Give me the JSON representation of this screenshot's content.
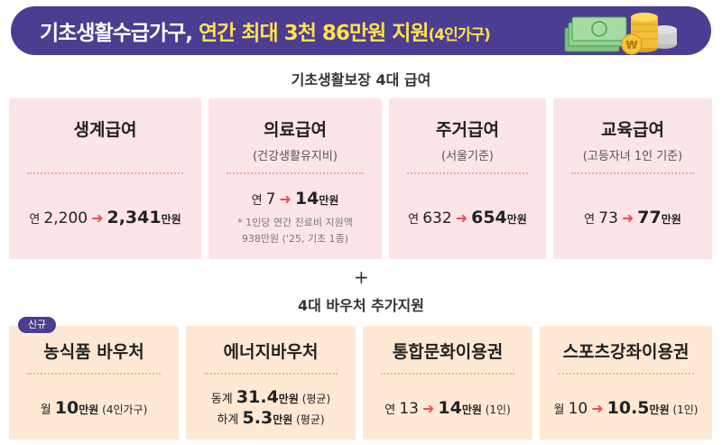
{
  "banner": {
    "title_part1": "기초생활수급가구, ",
    "title_part2": "연간 최대 3천 86만원 지원",
    "title_part3": "(4인가구)"
  },
  "section1": {
    "title": "기초생활보장 4대 급여",
    "cards": [
      {
        "title": "생계급여",
        "prefix": "연 ",
        "from": "2,200",
        "to": "2,341",
        "unit": "만원"
      },
      {
        "title": "의료급여",
        "subtitle": "(건강생활유지비)",
        "prefix": "연 ",
        "from": "7",
        "to": "14",
        "unit": "만원",
        "note1": "* 1인당 연간 진료비 지원액",
        "note2": "938만원 ('25, 기초 1종)"
      },
      {
        "title": "주거급여",
        "subtitle": "(서울기준)",
        "prefix": "연 ",
        "from": "632",
        "to": "654",
        "unit": "만원"
      },
      {
        "title": "교육급여",
        "subtitle": "(고등자녀 1인 기준)",
        "prefix": "연 ",
        "from": "73",
        "to": "77",
        "unit": "만원"
      }
    ]
  },
  "plus": "+",
  "section2": {
    "title": "4대 바우처 추가지원",
    "badge": "신규",
    "cards": [
      {
        "title": "농식품 바우처",
        "prefix": "월 ",
        "to": "10",
        "unit": "만원",
        "suffix": " (4인가구)"
      },
      {
        "title": "에너지바우처",
        "line1_prefix": "동계 ",
        "line1_value": "31.4",
        "line1_unit": "만원",
        "line1_suffix": " (평균)",
        "line2_prefix": "하계 ",
        "line2_value": "5.3",
        "line2_unit": "만원",
        "line2_suffix": " (평균)"
      },
      {
        "title": "통합문화이용권",
        "prefix": "연 ",
        "from": "13",
        "to": "14",
        "unit": "만원",
        "suffix": " (1인)"
      },
      {
        "title": "스포츠강좌이용권",
        "prefix": "월 ",
        "from": "10",
        "to": "10.5",
        "unit": "만원",
        "suffix": " (1인)"
      }
    ]
  },
  "icons": {
    "arrow": "right-arrow-icon",
    "money": "money-coins-icon"
  },
  "colors": {
    "banner": "#4b3d91",
    "highlight": "#ffe14d",
    "arrow": "#ee4b57",
    "card_pink": "#fce5e6",
    "card_peach": "#ffe9d5"
  }
}
